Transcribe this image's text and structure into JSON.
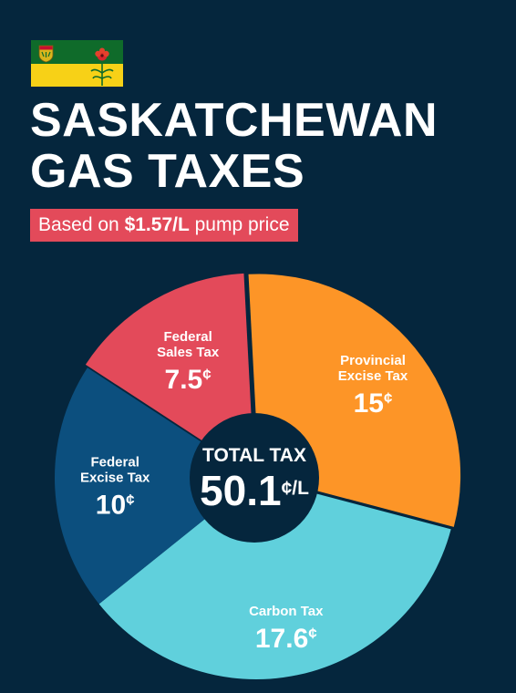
{
  "header": {
    "title_line1": "SASKATCHEWAN",
    "title_line2": "GAS TAXES",
    "subtitle_prefix": "Based on ",
    "subtitle_price": "$1.57/L",
    "subtitle_suffix": " pump price"
  },
  "flag": {
    "top_color": "#0f6b2a",
    "bottom_color": "#f7d117",
    "icon": "saskatchewan-flag-icon"
  },
  "chart_data": {
    "type": "pie",
    "variant": "donut",
    "unit": "¢",
    "center_title": "TOTAL TAX",
    "center_value": "50.1",
    "center_unit": "¢/L",
    "slices": [
      {
        "label_line1": "Provincial",
        "label_line2": "Excise Tax",
        "value": 15,
        "display": "15",
        "color": "#fd9527"
      },
      {
        "label_line1": "Carbon Tax",
        "label_line2": "",
        "value": 17.6,
        "display": "17.6",
        "color": "#60d0dc"
      },
      {
        "label_line1": "Federal",
        "label_line2": "Excise Tax",
        "value": 10,
        "display": "10",
        "color": "#0c4f7e"
      },
      {
        "label_line1": "Federal",
        "label_line2": "Sales Tax",
        "value": 7.5,
        "display": "7.5",
        "color": "#e34a5a"
      }
    ]
  }
}
